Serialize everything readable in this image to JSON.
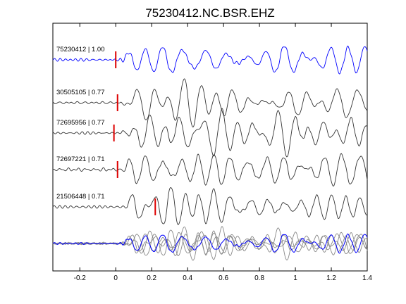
{
  "title": "75230412.NC.BSR.EHZ",
  "chart_data": {
    "type": "line",
    "title": "75230412.NC.BSR.EHZ",
    "xlabel": "",
    "ylabel": "",
    "xlim": [
      -0.35,
      1.4
    ],
    "x_ticks": [
      -0.2,
      0,
      0.2,
      0.4,
      0.6,
      0.8,
      1,
      1.2,
      1.4
    ],
    "x_tick_labels": [
      "-0.2",
      "0",
      "0.2",
      "0.4",
      "0.6",
      "0.8",
      "1",
      "1.2",
      "1.4"
    ],
    "grid": false,
    "series": [
      {
        "name": "75230412 | 1.00",
        "color": "#0000ff",
        "pick": 0.0
      },
      {
        "name": "30505105 | 0.77",
        "color": "#333333",
        "pick": 0.01
      },
      {
        "name": "72695956 | 0.77",
        "color": "#333333",
        "pick": -0.01
      },
      {
        "name": "72697221 | 0.71",
        "color": "#333333",
        "pick": 0.01
      },
      {
        "name": "21506448 | 0.71",
        "color": "#333333",
        "pick": 0.22
      }
    ],
    "pick_marker_color": "#dd0000",
    "stack_colors": [
      "#888888",
      "#0000ff"
    ]
  }
}
